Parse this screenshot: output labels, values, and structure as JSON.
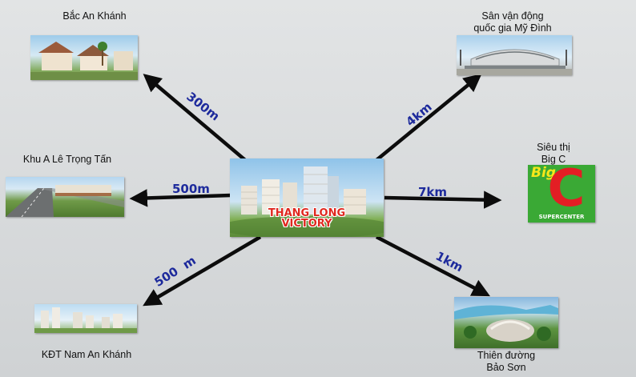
{
  "center": {
    "title_line1": "THANG LONG",
    "title_line2": "VICTORY"
  },
  "destinations": [
    {
      "id": "bac-an-khanh",
      "label_lines": [
        "Bắc An Khánh"
      ],
      "distance": "300m"
    },
    {
      "id": "my-dinh-stadium",
      "label_lines": [
        "Sân vận động",
        "quốc gia Mỹ Đình"
      ],
      "distance": "4km"
    },
    {
      "id": "khu-a-le-trong-tan",
      "label_lines": [
        "Khu A Lê Trọng Tấn"
      ],
      "distance": "500m"
    },
    {
      "id": "big-c",
      "label_lines": [
        "Siêu thị",
        "Big C"
      ],
      "distance": "7km"
    },
    {
      "id": "kdt-nam-an-khanh",
      "label_lines": [
        "KĐT Nam An Khánh"
      ],
      "distance": "500  m"
    },
    {
      "id": "bao-son",
      "label_lines": [
        "Thiên đường",
        "Bảo Sơn"
      ],
      "distance": "1km"
    }
  ],
  "bigc_logo": {
    "big": "Big",
    "c": "C",
    "sub": "SUPERCENTER"
  },
  "colors": {
    "arrow": "#0c0c0c",
    "distance_text": "#1d2a9c",
    "center_text": "#e0281f",
    "bigc_green": "#3aa935",
    "bigc_red": "#e31e24"
  }
}
